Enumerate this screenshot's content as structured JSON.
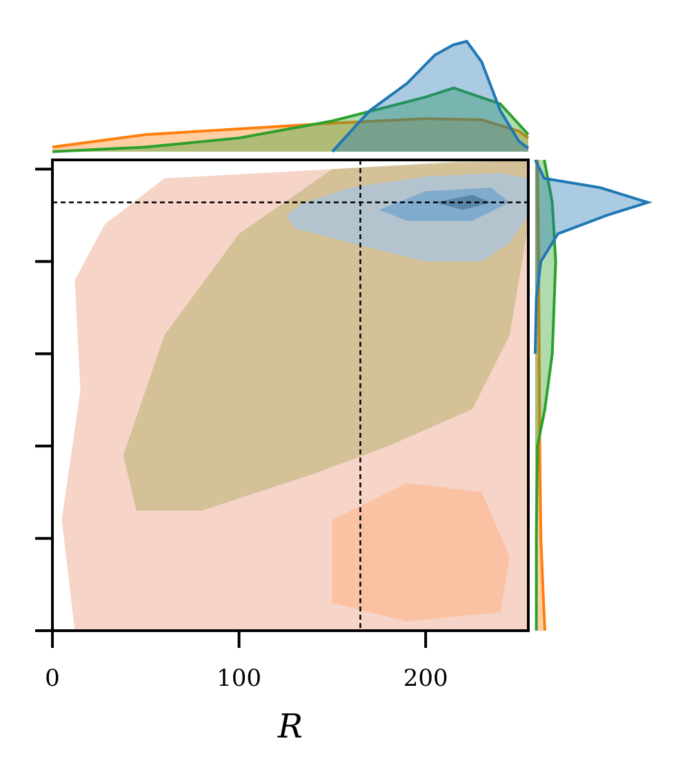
{
  "chart_data": {
    "type": "kde_joint",
    "xlabel": "R",
    "xlim": [
      0,
      255
    ],
    "ylim": [
      0,
      255
    ],
    "xticks": [
      0,
      100,
      200
    ],
    "yticks": [
      0,
      50,
      100,
      150,
      200,
      250
    ],
    "ytick_labels": false,
    "marginal_lim": [
      0,
      1
    ],
    "reference_lines": {
      "x": 165,
      "y": 232
    },
    "series": [
      {
        "color": "#ff7f0e",
        "fill_opacity": 0.9,
        "contours": [
          {
            "color": "#f6cfc2",
            "x": [
              12,
              5,
              15,
              12,
              28,
              60,
              150,
              255,
              255,
              255
            ],
            "y": [
              0,
              60,
              130,
              190,
              220,
              245,
              250,
              255,
              130,
              0
            ]
          },
          {
            "color": "#f9bf9f",
            "x": [
              150,
              150,
              190,
              230,
              245,
              240,
              190
            ],
            "y": [
              15,
              60,
              80,
              75,
              40,
              10,
              5
            ]
          }
        ],
        "marginal_x": {
          "at": [
            0,
            50,
            100,
            150,
            200,
            230,
            250,
            255
          ],
          "density": [
            0.04,
            0.15,
            0.2,
            0.25,
            0.29,
            0.28,
            0.18,
            0.12
          ]
        },
        "marginal_y": {
          "at": [
            0,
            20,
            50,
            100,
            150,
            200,
            250,
            255
          ],
          "density": [
            0.085,
            0.07,
            0.05,
            0.04,
            0.035,
            0.03,
            0.02,
            0.02
          ]
        }
      },
      {
        "color": "#2ca02c",
        "fill_opacity": 0.55,
        "contours": [
          {
            "color": "#b8b070",
            "x": [
              38,
              45,
              80,
              140,
              180,
              225,
              245,
              255,
              255,
              230,
              150,
              100,
              60
            ],
            "y": [
              95,
              65,
              65,
              85,
              100,
              120,
              160,
              220,
              255,
              255,
              250,
              215,
              160
            ]
          }
        ],
        "marginal_x": {
          "at": [
            0,
            50,
            100,
            150,
            200,
            215,
            240,
            255
          ],
          "density": [
            0,
            0.04,
            0.12,
            0.27,
            0.48,
            0.56,
            0.42,
            0.15
          ]
        },
        "marginal_y": {
          "at": [
            0,
            50,
            100,
            120,
            150,
            200,
            232,
            255
          ],
          "density": [
            0.01,
            0.01,
            0.02,
            0.085,
            0.15,
            0.18,
            0.15,
            0.08
          ]
        }
      },
      {
        "color": "#1f77b4",
        "fill_opacity": 0.75,
        "contours": [
          {
            "color": "#a9c4e0",
            "x": [
              125,
              135,
              160,
              200,
              240,
              255,
              255,
              245,
              230,
              200,
              160,
              130
            ],
            "y": [
              225,
              232,
              240,
              246,
              248,
              245,
              225,
              210,
              200,
              200,
              210,
              218
            ]
          },
          {
            "color": "#6fa3cc",
            "x": [
              175,
              200,
              235,
              245,
              225,
              190
            ],
            "y": [
              228,
              238,
              240,
              232,
              222,
              222
            ]
          },
          {
            "color": "#4a7899",
            "x": [
              205,
              225,
              235,
              220
            ],
            "y": [
              232,
              236,
              232,
              228
            ]
          }
        ],
        "marginal_x": {
          "at": [
            150,
            170,
            190,
            205,
            215,
            222,
            230,
            240,
            250,
            255
          ],
          "density": [
            0,
            0.36,
            0.6,
            0.85,
            0.94,
            0.97,
            0.79,
            0.36,
            0.09,
            0.03
          ]
        },
        "marginal_y": {
          "at": [
            150,
            180,
            200,
            215,
            225,
            232,
            240,
            245,
            255
          ],
          "density": [
            0,
            0.01,
            0.05,
            0.2,
            0.63,
            0.99,
            0.57,
            0.08,
            0
          ]
        }
      }
    ]
  }
}
